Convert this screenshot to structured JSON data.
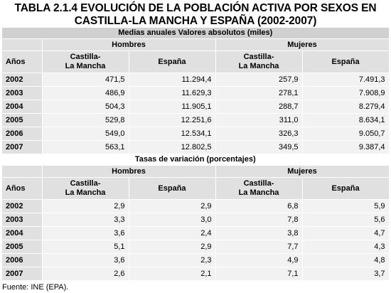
{
  "title_line1": "TABLA 2.1.4 EVOLUCIÓN DE LA POBLACIÓN ACTIVA POR SEXOS EN",
  "title_line2": "CASTILLA-LA MANCHA Y ESPAÑA (2002-2007)",
  "section1": {
    "heading": "Medias anuales Valores absolutos (miles)",
    "group_hombres": "Hombres",
    "group_mujeres": "Mujeres",
    "col_years": "Años",
    "col_clm_line1": "Castilla-",
    "col_clm_line2": "La Mancha",
    "col_esp": "España",
    "rows": [
      {
        "year": "2002",
        "h_clm": "471,5",
        "h_esp": "11.294,4",
        "m_clm": "257,9",
        "m_esp": "7.491,3"
      },
      {
        "year": "2003",
        "h_clm": "486,9",
        "h_esp": "11.629,3",
        "m_clm": "278,1",
        "m_esp": "7.908,9"
      },
      {
        "year": "2004",
        "h_clm": "504,3",
        "h_esp": "11.905,1",
        "m_clm": "288,7",
        "m_esp": "8.279,4"
      },
      {
        "year": "2005",
        "h_clm": "529,8",
        "h_esp": "12.251,6",
        "m_clm": "311,0",
        "m_esp": "8.634,1"
      },
      {
        "year": "2006",
        "h_clm": "549,0",
        "h_esp": "12.534,1",
        "m_clm": "326,3",
        "m_esp": "9.050,7"
      },
      {
        "year": "2007",
        "h_clm": "563,1",
        "h_esp": "12.802,5",
        "m_clm": "349,5",
        "m_esp": "9.387,4"
      }
    ]
  },
  "section2": {
    "heading": "Tasas de variación (porcentajes)",
    "group_hombres": "Hombres",
    "group_mujeres": "Mujeres",
    "col_years": "Años",
    "col_clm_line1": "Castilla-",
    "col_clm_line2": "La Mancha",
    "col_esp": "España",
    "rows": [
      {
        "year": "2002",
        "h_clm": "2,9",
        "h_esp": "2,9",
        "m_clm": "6,8",
        "m_esp": "5,9"
      },
      {
        "year": "2003",
        "h_clm": "3,3",
        "h_esp": "3,0",
        "m_clm": "7,8",
        "m_esp": "5,6"
      },
      {
        "year": "2004",
        "h_clm": "3,6",
        "h_esp": "2,4",
        "m_clm": "3,8",
        "m_esp": "4,7"
      },
      {
        "year": "2005",
        "h_clm": "5,1",
        "h_esp": "2,9",
        "m_clm": "7,7",
        "m_esp": "4,3"
      },
      {
        "year": "2006",
        "h_clm": "3,6",
        "h_esp": "2,3",
        "m_clm": "4,9",
        "m_esp": "4,8"
      },
      {
        "year": "2007",
        "h_clm": "2,6",
        "h_esp": "2,1",
        "m_clm": "7,1",
        "m_esp": "3,7"
      }
    ]
  },
  "source": "Fuente: INE (EPA)."
}
